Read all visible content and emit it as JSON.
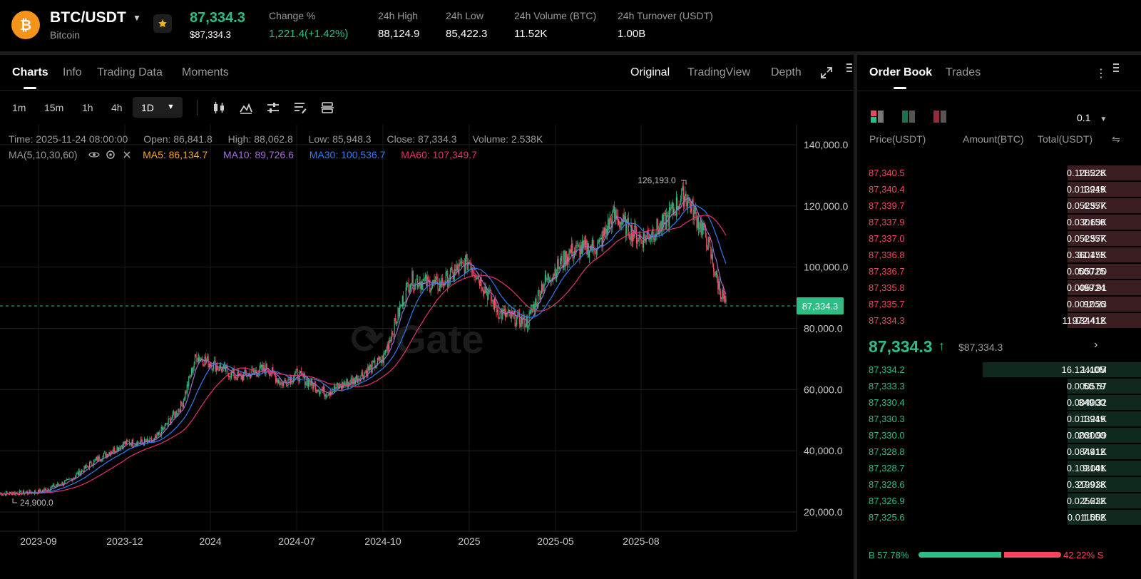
{
  "header": {
    "pair": "BTC/USDT",
    "coin_name": "Bitcoin",
    "last_price": "87,334.3",
    "last_price_usd": "$87,334.3",
    "stats": [
      {
        "label": "Change %",
        "value": "1,221.4(+1.42%)",
        "positive": true
      },
      {
        "label": "24h High",
        "value": "88,124.9"
      },
      {
        "label": "24h Low",
        "value": "85,422.3"
      },
      {
        "label": "24h Volume (BTC)",
        "value": "11.52K"
      },
      {
        "label": "24h Turnover (USDT)",
        "value": "1.00B"
      }
    ]
  },
  "chart_tabs": [
    {
      "label": "Charts",
      "active": true
    },
    {
      "label": "Info"
    },
    {
      "label": "Trading Data"
    },
    {
      "label": "Moments"
    }
  ],
  "view_tabs": [
    {
      "label": "Original",
      "active": true
    },
    {
      "label": "TradingView"
    },
    {
      "label": "Depth"
    }
  ],
  "intervals": [
    "1m",
    "15m",
    "1h",
    "4h"
  ],
  "active_interval": "1D",
  "candle_info": {
    "time": "Time: 2025-11-24 08:00:00",
    "open": "Open: 86,841.8",
    "high": "High: 88,062.8",
    "low": "Low: 85,948.3",
    "close": "Close: 87,334.3",
    "volume": "Volume: 2.538K"
  },
  "ma": {
    "label": "MA(5,10,30,60)",
    "ma5": "MA5: 86,134.7",
    "ma10": "MA10: 89,726.6",
    "ma30": "MA30: 100,536.7",
    "ma60": "MA60: 107,349.7"
  },
  "colors": {
    "up": "#2ebd85",
    "down": "#f6465d",
    "ma5": "#f5a623",
    "ma10": "#a46bd6",
    "ma30": "#2f7df6",
    "ma60": "#e4336b"
  },
  "chart_data": {
    "type": "line",
    "y_ticks": [
      "140,000.0",
      "120,000.0",
      "100,000.0",
      "80,000.0",
      "60,000.0",
      "40,000.0",
      "20,000.0"
    ],
    "ylim": [
      20000,
      140000
    ],
    "x_ticks": [
      "2023-09",
      "2023-12",
      "2024",
      "2024-07",
      "2024-10",
      "2025",
      "2025-05",
      "2025-08"
    ],
    "max_label": "126,193.0",
    "min_label": "24,900.0",
    "current_price_label": "87,334.3",
    "current_price": 87334.3,
    "close_series": [
      {
        "date": "2023-08",
        "value": 26000
      },
      {
        "date": "2023-09",
        "value": 26500
      },
      {
        "date": "2023-10",
        "value": 30000
      },
      {
        "date": "2023-11",
        "value": 37000
      },
      {
        "date": "2023-12",
        "value": 42500
      },
      {
        "date": "2024-01",
        "value": 43000
      },
      {
        "date": "2024-02",
        "value": 55000
      },
      {
        "date": "2024-03",
        "value": 71000
      },
      {
        "date": "2024-04",
        "value": 64000
      },
      {
        "date": "2024-05",
        "value": 67000
      },
      {
        "date": "2024-06",
        "value": 62000
      },
      {
        "date": "2024-07",
        "value": 65000
      },
      {
        "date": "2024-08",
        "value": 59000
      },
      {
        "date": "2024-09",
        "value": 63000
      },
      {
        "date": "2024-10",
        "value": 70000
      },
      {
        "date": "2024-11",
        "value": 96000
      },
      {
        "date": "2024-12",
        "value": 94000
      },
      {
        "date": "2025-01",
        "value": 102000
      },
      {
        "date": "2025-02",
        "value": 85000
      },
      {
        "date": "2025-03",
        "value": 82000
      },
      {
        "date": "2025-04",
        "value": 94000
      },
      {
        "date": "2025-05",
        "value": 105000
      },
      {
        "date": "2025-06",
        "value": 107000
      },
      {
        "date": "2025-07",
        "value": 117000
      },
      {
        "date": "2025-08",
        "value": 109000
      },
      {
        "date": "2025-09",
        "value": 114000
      },
      {
        "date": "2025-10",
        "value": 124000
      },
      {
        "date": "2025-10-25",
        "value": 110000
      },
      {
        "date": "2025-11",
        "value": 96000
      },
      {
        "date": "2025-11-24",
        "value": 87334
      }
    ]
  },
  "orderbook": {
    "tabs": [
      "Order Book",
      "Trades"
    ],
    "precision": "0.1",
    "headers": [
      "Price(USDT)",
      "Amount(BTC)",
      "Total(USDT)"
    ],
    "asks": [
      {
        "price": "87,340.5",
        "amount": "0.128528",
        "total": "11.22K",
        "depth": 0.3
      },
      {
        "price": "87,340.4",
        "amount": "0.013949",
        "total": "1.21K",
        "depth": 0.3
      },
      {
        "price": "87,339.7",
        "amount": "0.052357",
        "total": "4.57K",
        "depth": 0.3
      },
      {
        "price": "87,337.9",
        "amount": "0.030150",
        "total": "2.63K",
        "depth": 0.3
      },
      {
        "price": "87,337.0",
        "amount": "0.052357",
        "total": "4.57K",
        "depth": 0.3
      },
      {
        "price": "87,336.8",
        "amount": "0.360175",
        "total": "31.45K",
        "depth": 0.3
      },
      {
        "price": "87,336.7",
        "amount": "0.005725",
        "total": "500.00",
        "depth": 0.3
      },
      {
        "price": "87,335.8",
        "amount": "0.005724",
        "total": "499.91",
        "depth": 0.3
      },
      {
        "price": "87,335.7",
        "amount": "0.001056",
        "total": "92.23",
        "depth": 0.3
      },
      {
        "price": "87,334.3",
        "amount": "11.134412",
        "total": "972.41K",
        "depth": 0.3
      }
    ],
    "mid_price": "87,334.3",
    "mid_price_usd": "$87,334.3",
    "bids": [
      {
        "price": "87,334.2",
        "amount": "16.124105",
        "total": "1.40M",
        "depth": 0.6
      },
      {
        "price": "87,333.3",
        "amount": "0.000579",
        "total": "50.57",
        "depth": 0.3
      },
      {
        "price": "87,330.4",
        "amount": "0.004000",
        "total": "349.32",
        "depth": 0.3
      },
      {
        "price": "87,330.3",
        "amount": "0.013949",
        "total": "1.21K",
        "depth": 0.3
      },
      {
        "price": "87,330.0",
        "amount": "0.003000",
        "total": "261.99",
        "depth": 0.3
      },
      {
        "price": "87,328.8",
        "amount": "0.084912",
        "total": "7.41K",
        "depth": 0.3
      },
      {
        "price": "87,328.7",
        "amount": "0.103141",
        "total": "9.00K",
        "depth": 0.3
      },
      {
        "price": "87,328.6",
        "amount": "0.319918",
        "total": "27.93K",
        "depth": 0.3
      },
      {
        "price": "87,326.9",
        "amount": "0.025612",
        "total": "2.23K",
        "depth": 0.3
      },
      {
        "price": "87,325.6",
        "amount": "0.011552",
        "total": "1.00K",
        "depth": 0.3
      }
    ],
    "buy_ratio": "B 57.78%",
    "sell_ratio": "42.22% S",
    "buy_ratio_value": 57.78
  },
  "icons": {
    "coin": "bitcoin-icon",
    "favorite": "star-icon",
    "expand": "expand-icon",
    "menu": "vertical-menu-icon"
  }
}
